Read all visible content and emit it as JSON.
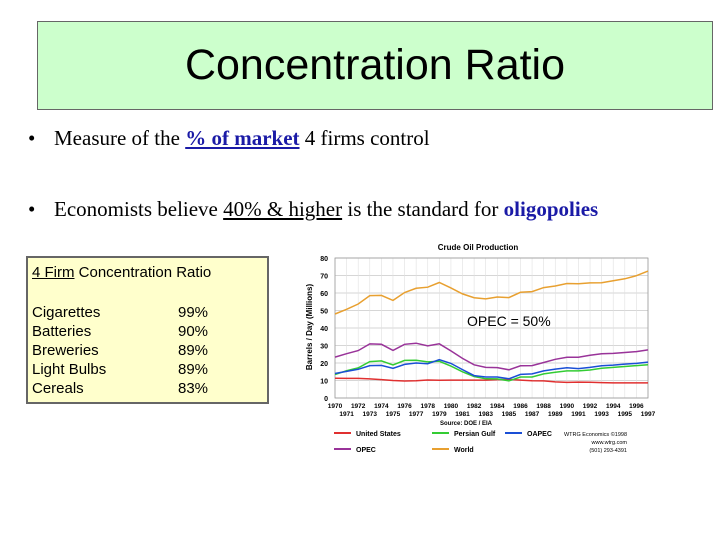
{
  "title": "Concentration Ratio",
  "bullets": [
    {
      "pre": "Measure of the ",
      "link": "% of market",
      "post": " 4 firms control"
    },
    {
      "pre": "Economists believe ",
      "underline": "40% & higher",
      "mid": " is the standard for ",
      "emphasis": "oligopolies"
    }
  ],
  "table": {
    "title_prefix": "4 Firm",
    "title_suffix": " Concentration Ratio",
    "rows": [
      {
        "name": "Cigarettes",
        "value": "99%"
      },
      {
        "name": "Batteries",
        "value": "90%"
      },
      {
        "name": "Breweries",
        "value": "89%"
      },
      {
        "name": "Light Bulbs",
        "value": "89%"
      },
      {
        "name": "Cereals",
        "value": "83%"
      }
    ]
  },
  "chart_data": {
    "type": "line",
    "title": "Crude Oil Production",
    "ylabel": "Barrels / Day (Millions)",
    "ylim": [
      0,
      80
    ],
    "yticks": [
      0,
      10,
      20,
      30,
      40,
      50,
      60,
      70,
      80
    ],
    "x_labels_top": [
      "1970",
      "1972",
      "1974",
      "1976",
      "1978",
      "1980",
      "1982",
      "1984",
      "1986",
      "1988",
      "1990",
      "1992",
      "1994",
      "1996"
    ],
    "x_labels_bottom": [
      "1971",
      "1973",
      "1975",
      "1977",
      "1979",
      "1981",
      "1983",
      "1985",
      "1987",
      "1989",
      "1991",
      "1993",
      "1995",
      "1997"
    ],
    "source": "Source: DOE / EIA",
    "annotation": "OPEC = 50%",
    "credit": [
      "WTRG Economics ©1998",
      "www.wtrg.com",
      "(501) 293-4391"
    ],
    "x": [
      1970,
      1971,
      1972,
      1973,
      1974,
      1975,
      1976,
      1977,
      1978,
      1979,
      1980,
      1981,
      1982,
      1983,
      1984,
      1985,
      1986,
      1987,
      1988,
      1989,
      1990,
      1991,
      1992,
      1993,
      1994,
      1995,
      1996,
      1997
    ],
    "series": [
      {
        "name": "United States",
        "color": "#e03030",
        "values": [
          11.3,
          11.2,
          11.2,
          10.9,
          10.5,
          10.0,
          9.7,
          9.9,
          10.3,
          10.1,
          10.2,
          10.2,
          10.2,
          10.2,
          10.5,
          10.6,
          10.2,
          9.9,
          9.8,
          9.2,
          8.9,
          9.1,
          9.0,
          8.8,
          8.6,
          8.6,
          8.6,
          8.6
        ]
      },
      {
        "name": "Persian Gulf",
        "color": "#33cc33",
        "values": [
          13.4,
          15.6,
          17.2,
          20.8,
          21.2,
          18.9,
          21.5,
          21.6,
          20.6,
          21.0,
          18.2,
          15.0,
          12.3,
          11.0,
          10.9,
          9.8,
          12.0,
          12.0,
          13.8,
          14.7,
          15.5,
          15.5,
          16.0,
          17.0,
          17.5,
          18.0,
          18.5,
          19.0
        ]
      },
      {
        "name": "OAPEC",
        "color": "#1a4fd6",
        "values": [
          14.0,
          15.2,
          16.4,
          18.5,
          18.6,
          17.0,
          19.2,
          20.0,
          19.6,
          21.9,
          19.8,
          16.2,
          12.8,
          12.0,
          12.0,
          11.0,
          13.5,
          13.8,
          15.5,
          16.5,
          17.3,
          16.8,
          17.5,
          18.4,
          18.8,
          19.4,
          19.8,
          20.5
        ]
      },
      {
        "name": "OPEC",
        "color": "#993399",
        "values": [
          23.4,
          25.3,
          27.1,
          30.9,
          30.7,
          27.2,
          30.7,
          31.3,
          29.8,
          31.0,
          26.9,
          22.6,
          19.0,
          17.5,
          17.4,
          16.1,
          18.4,
          18.5,
          20.3,
          22.1,
          23.3,
          23.3,
          24.4,
          25.3,
          25.5,
          26.0,
          26.5,
          27.5
        ]
      },
      {
        "name": "World",
        "color": "#e8a030",
        "values": [
          48.0,
          50.7,
          53.7,
          58.5,
          58.6,
          55.8,
          60.3,
          62.7,
          63.3,
          66.0,
          62.9,
          59.5,
          57.3,
          56.6,
          57.7,
          57.4,
          60.4,
          60.8,
          63.1,
          64.0,
          65.4,
          65.3,
          65.8,
          65.9,
          67.0,
          68.1,
          69.9,
          72.5
        ]
      }
    ]
  }
}
